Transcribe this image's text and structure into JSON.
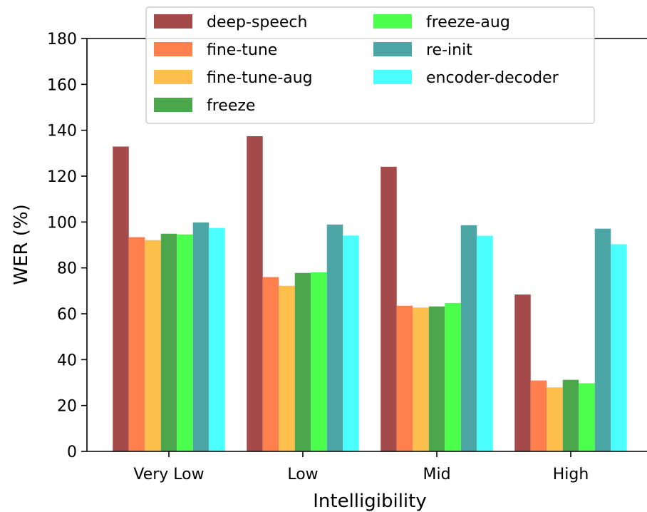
{
  "chart_data": {
    "type": "bar",
    "xlabel": "Intelligibility",
    "ylabel": "WER (%)",
    "ylim": [
      0,
      180
    ],
    "yticks": [
      0,
      20,
      40,
      60,
      80,
      100,
      120,
      140,
      160,
      180
    ],
    "categories": [
      "Very Low",
      "Low",
      "Mid",
      "High"
    ],
    "legend_position": "top-center",
    "series": [
      {
        "name": "deep-speech",
        "color": "#a54a4a",
        "values": [
          132.9,
          137.4,
          124.1,
          68.4
        ]
      },
      {
        "name": "fine-tune",
        "color": "#ff7f4d",
        "values": [
          93.4,
          76.0,
          63.5,
          30.9
        ]
      },
      {
        "name": "fine-tune-aug",
        "color": "#ffbf4d",
        "values": [
          92.1,
          72.2,
          62.7,
          27.9
        ]
      },
      {
        "name": "freeze",
        "color": "#4ca64c",
        "values": [
          94.9,
          77.8,
          63.2,
          31.2
        ]
      },
      {
        "name": "freeze-aug",
        "color": "#4cff4c",
        "values": [
          94.6,
          78.1,
          64.7,
          29.7
        ]
      },
      {
        "name": "re-init",
        "color": "#4ca6a6",
        "values": [
          99.8,
          98.9,
          98.6,
          97.1
        ]
      },
      {
        "name": "encoder-decoder",
        "color": "#4cffff",
        "values": [
          97.4,
          94.1,
          94.0,
          90.3
        ]
      }
    ]
  }
}
